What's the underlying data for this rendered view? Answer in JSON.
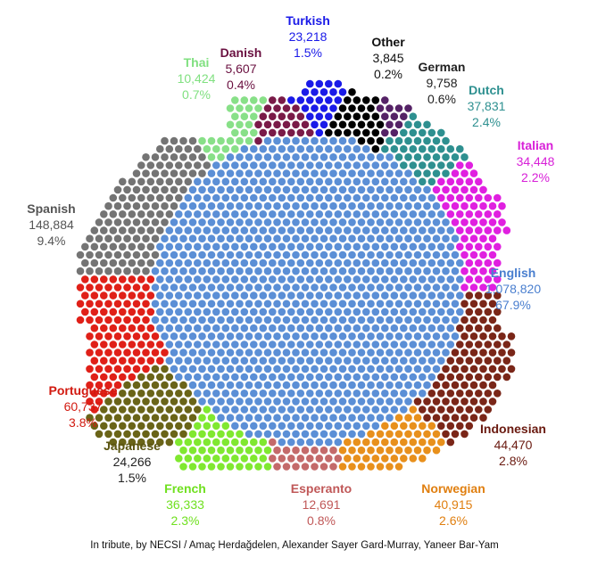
{
  "chart_data": {
    "type": "dot-cluster",
    "unit_note": "",
    "series": [
      {
        "name": "English",
        "count": "1,078,820",
        "percent": "67.9%",
        "value": 1078820,
        "share": 67.9,
        "color": "#5b8fd6"
      },
      {
        "name": "Spanish",
        "count": "148,884",
        "percent": "9.4%",
        "value": 148884,
        "share": 9.4,
        "color": "#747474"
      },
      {
        "name": "Indonesian",
        "count": "44,470",
        "percent": "2.8%",
        "value": 44470,
        "share": 2.8,
        "color": "#7a2618"
      },
      {
        "name": "Norwegian",
        "count": "40,915",
        "percent": "2.6%",
        "value": 40915,
        "share": 2.6,
        "color": "#e8901c"
      },
      {
        "name": "Portuguese",
        "count": "60,737",
        "percent": "3.8%",
        "value": 60737,
        "share": 3.8,
        "color": "#e02018"
      },
      {
        "name": "Dutch",
        "count": "37,831",
        "percent": "2.4%",
        "value": 37831,
        "share": 2.4,
        "color": "#2e9090"
      },
      {
        "name": "French",
        "count": "36,333",
        "percent": "2.3%",
        "value": 36333,
        "share": 2.3,
        "color": "#80e830"
      },
      {
        "name": "Italian",
        "count": "34,448",
        "percent": "2.2%",
        "value": 34448,
        "share": 2.2,
        "color": "#e020e0"
      },
      {
        "name": "Japanese",
        "count": "24,266",
        "percent": "1.5%",
        "value": 24266,
        "share": 1.5,
        "color": "#6a6418"
      },
      {
        "name": "Turkish",
        "count": "23,218",
        "percent": "1.5%",
        "value": 23218,
        "share": 1.5,
        "color": "#1a1ae8"
      },
      {
        "name": "Esperanto",
        "count": "12,691",
        "percent": "0.8%",
        "value": 12691,
        "share": 0.8,
        "color": "#c46a6a"
      },
      {
        "name": "Thai",
        "count": "10,424",
        "percent": "0.7%",
        "value": 10424,
        "share": 0.7,
        "color": "#88e088"
      },
      {
        "name": "German",
        "count": "9,758",
        "percent": "0.6%",
        "value": 9758,
        "share": 0.6,
        "color": "#552266"
      },
      {
        "name": "Danish",
        "count": "5,607",
        "percent": "0.4%",
        "value": 5607,
        "share": 0.4,
        "color": "#7a1a48"
      },
      {
        "name": "Other",
        "count": "3,845",
        "percent": "0.2%",
        "value": 3845,
        "share": 0.2,
        "color": "#000000"
      }
    ],
    "label_colors": {
      "English": "#4a7fcf",
      "Spanish": "#555555",
      "Indonesian": "#6a1a10",
      "Norwegian": "#e07f10",
      "Portuguese": "#d21a10",
      "Dutch": "#2e9090",
      "French": "#70e020",
      "Italian": "#d820d8",
      "Japanese": "#5a5410",
      "Turkish": "#1a1ae8",
      "Esperanto": "#c05858",
      "Thai": "#80e080",
      "German": "#222222",
      "Danish": "#6a1040",
      "Other": "#111111"
    }
  },
  "credit": "In tribute, by NECSI / Amaç Herdağdelen, Alexander Sayer Gard-Murray, Yaneer Bar-Yam"
}
